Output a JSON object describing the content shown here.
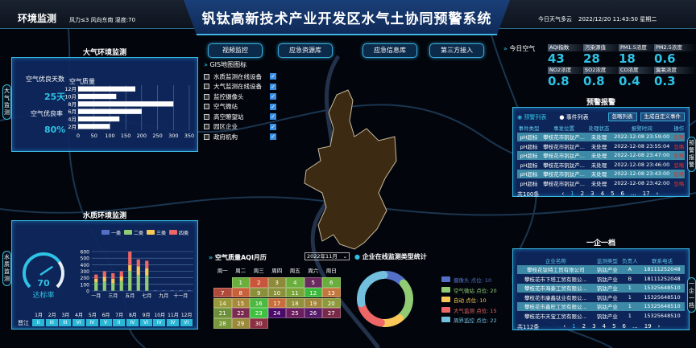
{
  "header": {
    "section": "环境监测",
    "weather_info": "风力≤3  风向东南  湿度:70",
    "title": "钒钛高新技术产业开发区水气土协同预警系统",
    "weather_today": "今日天气多云",
    "datetime": "2022/12/20 11:43:50 星期二"
  },
  "nav": [
    "视频监控",
    "应急资源库",
    "应急信息库",
    "第三方接入"
  ],
  "air_panel": {
    "title": "大气环境监测",
    "side_tab": "大气监测",
    "good_days_label": "空气优良天数",
    "good_days": "25天",
    "good_rate_label": "空气优良率",
    "good_rate": "80%"
  },
  "water_panel": {
    "title": "水质环境监测",
    "side_tab": "水质监测",
    "gauge_value": "70",
    "gauge_label": "达标率",
    "gauge_fraction": 0.7,
    "station": "晋江",
    "months": [
      "1月",
      "2月",
      "3月",
      "4月",
      "5月",
      "6月",
      "7月",
      "8月",
      "9月",
      "10月",
      "11月",
      "12月"
    ],
    "grades": [
      "II",
      "III",
      "III",
      "VI",
      "IV",
      "V",
      "II",
      "IV",
      "VI",
      "IV",
      "IV",
      "VI"
    ]
  },
  "gis": {
    "title": "GIS地图图标",
    "items": [
      {
        "label": "水质监测在线设备",
        "checked": true
      },
      {
        "label": "大气监测在线设备",
        "checked": true
      },
      {
        "label": "监控摄像头",
        "checked": true
      },
      {
        "label": "空气微站",
        "checked": true
      },
      {
        "label": "高空瞭望站",
        "checked": true
      },
      {
        "label": "园区企业",
        "checked": true
      },
      {
        "label": "政府机构",
        "checked": true
      }
    ]
  },
  "calendar": {
    "title": "空气质量AQI月历",
    "month": "2022年11月",
    "weekdays": [
      "周一",
      "周二",
      "周三",
      "周四",
      "周五",
      "周六",
      "周日"
    ],
    "start_weekday": 1,
    "days": [
      {
        "d": "1",
        "c": "#6aae3c"
      },
      {
        "d": "2",
        "c": "#c9553a"
      },
      {
        "d": "3",
        "c": "#8f8a3a"
      },
      {
        "d": "4",
        "c": "#6aae3c"
      },
      {
        "d": "5",
        "c": "#6b2a5e"
      },
      {
        "d": "6",
        "c": "#6aae3c"
      },
      {
        "d": "7",
        "c": "#b04a3a"
      },
      {
        "d": "8",
        "c": "#c8603a"
      },
      {
        "d": "9",
        "c": "#8a8f3a"
      },
      {
        "d": "10",
        "c": "#8a8f3a"
      },
      {
        "d": "11",
        "c": "#7aa33a"
      },
      {
        "d": "12",
        "c": "#3cb83c"
      },
      {
        "d": "13",
        "c": "#c4773a"
      },
      {
        "d": "14",
        "c": "#9a993a"
      },
      {
        "d": "15",
        "c": "#a88a3a"
      },
      {
        "d": "16",
        "c": "#4cb840"
      },
      {
        "d": "17",
        "c": "#c86e3a"
      },
      {
        "d": "18",
        "c": "#92903a"
      },
      {
        "d": "19",
        "c": "#a0843a"
      },
      {
        "d": "20",
        "c": "#8e9a3a"
      },
      {
        "d": "21",
        "c": "#6e8f3a"
      },
      {
        "d": "22",
        "c": "#7a2b50"
      },
      {
        "d": "23",
        "c": "#40c040"
      },
      {
        "d": "24",
        "c": "#4a0a6a"
      },
      {
        "d": "25",
        "c": "#6a1e5e"
      },
      {
        "d": "26",
        "c": "#561a68"
      },
      {
        "d": "27",
        "c": "#7a2a48"
      },
      {
        "d": "28",
        "c": "#7a9a3a"
      },
      {
        "d": "29",
        "c": "#9a8a3a"
      },
      {
        "d": "30",
        "c": "#8a3040"
      }
    ]
  },
  "today_air": {
    "title": "今日空气",
    "items": [
      {
        "label": "AQI指数",
        "value": "43"
      },
      {
        "label": "污染源值",
        "value": "28"
      },
      {
        "label": "PM1.5浓度",
        "value": "18"
      },
      {
        "label": "PM2.5浓度",
        "value": "0.6"
      },
      {
        "label": "NO2浓度",
        "value": "0.8"
      },
      {
        "label": "SO2浓度",
        "value": "0.8"
      },
      {
        "label": "CO浓度",
        "value": "0.4"
      },
      {
        "label": "臭氧浓度",
        "value": "0.3"
      }
    ]
  },
  "warning": {
    "title": "预警报警",
    "side_tab": "预警报警",
    "radio_warning": "预警列表",
    "radio_event": "事件列表",
    "btn_ignore": "忽略列表",
    "btn_generate": "生成自定义事件",
    "columns": [
      "事件类型",
      "事发位置",
      "处理状态",
      "报警时间",
      "操作"
    ],
    "rows": [
      [
        "pH超标",
        "攀枝花市钒钛产...",
        "未处理",
        "2022-12-08 23:59:00",
        "忽略"
      ],
      [
        "pH超标",
        "攀枝花市钒钛产...",
        "未处理",
        "2022-12-08 23:55:04",
        "忽略"
      ],
      [
        "pH超标",
        "攀枝花市钒钛产...",
        "未处理",
        "2022-12-08 23:47:00",
        "忽略"
      ],
      [
        "pH超标",
        "攀枝花市钒钛产...",
        "未处理",
        "2022-12-08 23:46:00",
        "忽略"
      ],
      [
        "pH超标",
        "攀枝花市钒钛产...",
        "未处理",
        "2022-12-08 23:43:00",
        "忽略"
      ],
      [
        "pH超标",
        "攀枝花市钒钛产...",
        "未处理",
        "2022-12-08 23:42:00",
        "忽略"
      ]
    ],
    "total": "共100条",
    "pages": [
      "‹",
      "1",
      "2",
      "3",
      "4",
      "5",
      "6",
      "...",
      "17",
      "›"
    ],
    "current_page": "1"
  },
  "enterprise": {
    "title": "一企一档",
    "side_tab": "一企一档",
    "columns": [
      "企业名称",
      "监测类型",
      "负责人",
      "联系电话"
    ],
    "rows": [
      [
        "攀枝花钛特工贸有限公司",
        "钒钛产业",
        "A",
        "18111252048"
      ],
      [
        "攀枝花市下塔工贸有限公...",
        "钒钛产业",
        "B",
        "18111252048"
      ],
      [
        "攀枝花市海泰工贸有限公...",
        "钒钛产业",
        "1",
        "15325648510"
      ],
      [
        "攀枝花市康鑫钛业有限公...",
        "钒钛产业",
        "1",
        "15325648510"
      ],
      [
        "攀枝花市鑫旺工贸有限公...",
        "钒钛产业",
        "1",
        "15325648510"
      ],
      [
        "攀枝花市天宝工贸有限公...",
        "钒钛产业",
        "1",
        "15325648510"
      ]
    ],
    "total": "共112条",
    "pages": [
      "‹",
      "1",
      "2",
      "3",
      "4",
      "5",
      "6",
      "...",
      "19",
      "›"
    ],
    "current_page": "1"
  },
  "donut": {
    "title": "企业在线监测类型统计"
  },
  "chart_data": [
    {
      "type": "bar",
      "orientation": "horizontal",
      "title": "空气质量",
      "categories": [
        "2月",
        "4月",
        "6月",
        "8月",
        "10月",
        "12月"
      ],
      "values": [
        100,
        130,
        200,
        300,
        120,
        180
      ],
      "xlim": [
        0,
        350
      ],
      "xticks": [
        0,
        50,
        100,
        150,
        200,
        250,
        300,
        350
      ],
      "grid": true,
      "color": "#ffffff"
    },
    {
      "type": "bar",
      "stacked": true,
      "categories": [
        "一月",
        "二月",
        "三月",
        "四月",
        "五月",
        "六月",
        "七月",
        "八月",
        "九月",
        "十月",
        "十一月",
        "十二月"
      ],
      "tick_labels": [
        "一月",
        "",
        "三月",
        "",
        "五月",
        "",
        "七月",
        "",
        "九月",
        "",
        "十一月",
        ""
      ],
      "ylim": [
        0,
        600
      ],
      "yticks": [
        0,
        100,
        200,
        300,
        400,
        500,
        600
      ],
      "legend": "top",
      "series": [
        {
          "name": "一类",
          "color": "#5470c6",
          "values": [
            5,
            5,
            5,
            5,
            5,
            5,
            5,
            10,
            10,
            10,
            10,
            10
          ]
        },
        {
          "name": "二类",
          "color": "#91cc75",
          "values": [
            130,
            140,
            110,
            145,
            300,
            240,
            230,
            0,
            0,
            0,
            0,
            0
          ]
        },
        {
          "name": "三类",
          "color": "#fac858",
          "values": [
            50,
            70,
            70,
            70,
            90,
            130,
            110,
            0,
            0,
            0,
            0,
            0
          ]
        },
        {
          "name": "四类",
          "color": "#ee6666",
          "values": [
            65,
            85,
            85,
            80,
            205,
            105,
            115,
            0,
            0,
            0,
            0,
            0
          ]
        }
      ]
    },
    {
      "type": "pie",
      "donut": true,
      "legend": "right",
      "slices": [
        {
          "name": "摄像头",
          "label": "摄像头 点位: 10",
          "value": 10,
          "color": "#5470c6"
        },
        {
          "name": "空气微站",
          "label": "空气微站 点位: 20",
          "value": 20,
          "color": "#91cc75"
        },
        {
          "name": "自动",
          "label": "自动 点位: 10",
          "value": 10,
          "color": "#fac858"
        },
        {
          "name": "大气监测",
          "label": "大气监测 点位: 15",
          "value": 15,
          "color": "#ee6666"
        },
        {
          "name": "周界监控",
          "label": "周界监控 点位: 22",
          "value": 22,
          "color": "#73c0de"
        }
      ]
    }
  ]
}
